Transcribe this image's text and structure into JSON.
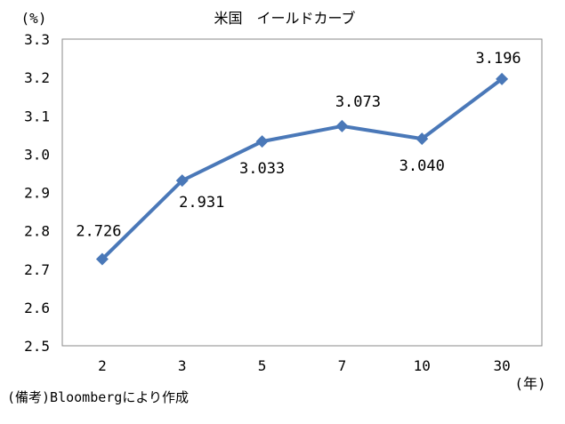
{
  "chart_data": {
    "type": "line",
    "title": "米国　イールドカーブ",
    "ylabel": "(%)",
    "xlabel": "(年)",
    "categories": [
      "2",
      "3",
      "5",
      "7",
      "10",
      "30"
    ],
    "series": [
      {
        "values": [
          2.726,
          2.931,
          3.033,
          3.073,
          3.04,
          3.196
        ]
      }
    ],
    "data_labels": [
      "2.726",
      "2.931",
      "3.033",
      "3.073",
      "3.040",
      "3.196"
    ],
    "y_ticks": [
      "2.5",
      "2.6",
      "2.7",
      "2.8",
      "2.9",
      "3.0",
      "3.1",
      "3.2",
      "3.3"
    ],
    "ylim": [
      2.5,
      3.3
    ],
    "grid": false,
    "legend": "none",
    "line_color": "#4a78b8",
    "marker": "diamond"
  },
  "footnote": "(備考)Bloombergにより作成"
}
